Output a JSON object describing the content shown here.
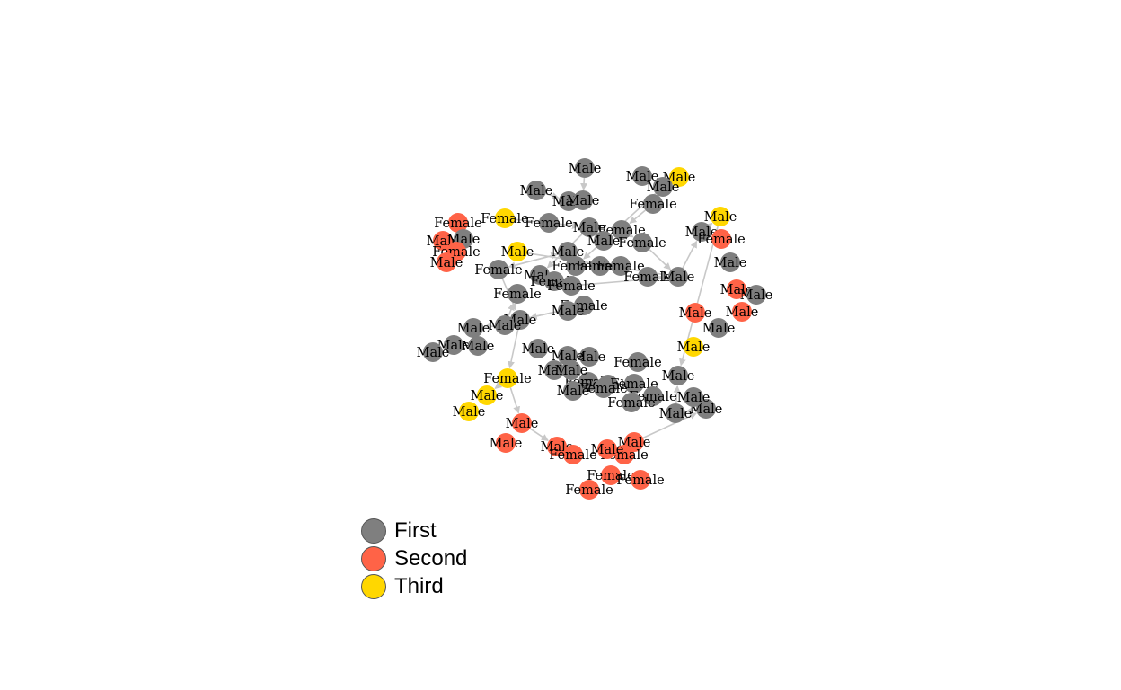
{
  "legend": {
    "items": [
      {
        "label": "First",
        "color": "#7f7f7f"
      },
      {
        "label": "Second",
        "color": "#ff6347"
      },
      {
        "label": "Third",
        "color": "#ffd700"
      }
    ]
  },
  "graph": {
    "colors": {
      "First": "#7f7f7f",
      "Second": "#ff6347",
      "Third": "#ffd700",
      "edge": "#c8c8c8"
    },
    "nodes": [
      {
        "id": "n1",
        "label": "Male",
        "cls": "First"
      },
      {
        "id": "n2",
        "label": "Male",
        "cls": "First"
      },
      {
        "id": "n3",
        "label": "Male",
        "cls": "Third"
      },
      {
        "id": "n4",
        "label": "Male",
        "cls": "First"
      },
      {
        "id": "n5",
        "label": "Male",
        "cls": "First"
      },
      {
        "id": "n6",
        "label": "Male",
        "cls": "First"
      },
      {
        "id": "n7",
        "label": "Male",
        "cls": "First"
      },
      {
        "id": "n8",
        "label": "Female",
        "cls": "First"
      },
      {
        "id": "n9",
        "label": "Female",
        "cls": "Third"
      },
      {
        "id": "n10",
        "label": "Female",
        "cls": "First"
      },
      {
        "id": "n11",
        "label": "Male",
        "cls": "First"
      },
      {
        "id": "n12",
        "label": "Female",
        "cls": "First"
      },
      {
        "id": "n13",
        "label": "Female",
        "cls": "First"
      },
      {
        "id": "n14",
        "label": "Male",
        "cls": "First"
      },
      {
        "id": "n15",
        "label": "Female",
        "cls": "Second"
      },
      {
        "id": "n16",
        "label": "Male",
        "cls": "Second"
      },
      {
        "id": "n17",
        "label": "Male",
        "cls": "First"
      },
      {
        "id": "n18",
        "label": "Female",
        "cls": "Second"
      },
      {
        "id": "n19",
        "label": "Male",
        "cls": "Second"
      },
      {
        "id": "n20",
        "label": "Male",
        "cls": "Third"
      },
      {
        "id": "n21",
        "label": "Male",
        "cls": "First"
      },
      {
        "id": "n22",
        "label": "Female",
        "cls": "First"
      },
      {
        "id": "n23",
        "label": "Male",
        "cls": "First"
      },
      {
        "id": "n24",
        "label": "Female",
        "cls": "First"
      },
      {
        "id": "n25",
        "label": "Female",
        "cls": "First"
      },
      {
        "id": "n26",
        "label": "Female",
        "cls": "First"
      },
      {
        "id": "n27",
        "label": "Female",
        "cls": "First"
      },
      {
        "id": "n28",
        "label": "Female",
        "cls": "First"
      },
      {
        "id": "n29",
        "label": "Female",
        "cls": "First"
      },
      {
        "id": "n30",
        "label": "Male",
        "cls": "First"
      },
      {
        "id": "n31",
        "label": "Male",
        "cls": "Third"
      },
      {
        "id": "n32",
        "label": "Male",
        "cls": "First"
      },
      {
        "id": "n33",
        "label": "Female",
        "cls": "Second"
      },
      {
        "id": "n34",
        "label": "Male",
        "cls": "First"
      },
      {
        "id": "n35",
        "label": "Male",
        "cls": "Second"
      },
      {
        "id": "n36",
        "label": "Female",
        "cls": "First"
      },
      {
        "id": "n37",
        "label": "Male",
        "cls": "Second"
      },
      {
        "id": "n38",
        "label": "Male",
        "cls": "First"
      },
      {
        "id": "n39",
        "label": "Female",
        "cls": "First"
      },
      {
        "id": "n40",
        "label": "Male",
        "cls": "First"
      },
      {
        "id": "n41",
        "label": "Male",
        "cls": "First"
      },
      {
        "id": "n42",
        "label": "Male",
        "cls": "First"
      },
      {
        "id": "n43",
        "label": "Male",
        "cls": "First"
      },
      {
        "id": "n44",
        "label": "Male",
        "cls": "Second"
      },
      {
        "id": "n45",
        "label": "Male",
        "cls": "First"
      },
      {
        "id": "n46",
        "label": "Male",
        "cls": "First"
      },
      {
        "id": "n47",
        "label": "Male",
        "cls": "Third"
      },
      {
        "id": "n48",
        "label": "Male",
        "cls": "First"
      },
      {
        "id": "n49",
        "label": "Male",
        "cls": "First"
      },
      {
        "id": "n50",
        "label": "Male",
        "cls": "First"
      },
      {
        "id": "n51",
        "label": "Male",
        "cls": "First"
      },
      {
        "id": "n52",
        "label": "Male",
        "cls": "First"
      },
      {
        "id": "n53",
        "label": "Female",
        "cls": "First"
      },
      {
        "id": "n54",
        "label": "Female",
        "cls": "First"
      },
      {
        "id": "n55",
        "label": "Female",
        "cls": "First"
      },
      {
        "id": "n56",
        "label": "Male",
        "cls": "First"
      },
      {
        "id": "n57",
        "label": "Male",
        "cls": "First"
      },
      {
        "id": "n58",
        "label": "Female",
        "cls": "Third"
      },
      {
        "id": "n59",
        "label": "Male",
        "cls": "Third"
      },
      {
        "id": "n60",
        "label": "Male",
        "cls": "Third"
      },
      {
        "id": "n61",
        "label": "Male",
        "cls": "First"
      },
      {
        "id": "n62",
        "label": "Female",
        "cls": "First"
      },
      {
        "id": "n63",
        "label": "Female",
        "cls": "First"
      },
      {
        "id": "n64",
        "label": "Female",
        "cls": "First"
      },
      {
        "id": "n65",
        "label": "Female",
        "cls": "First"
      },
      {
        "id": "n66",
        "label": "Male",
        "cls": "First"
      },
      {
        "id": "n67",
        "label": "Male",
        "cls": "First"
      },
      {
        "id": "n68",
        "label": "Male",
        "cls": "First"
      },
      {
        "id": "n69",
        "label": "Male",
        "cls": "First"
      },
      {
        "id": "n70",
        "label": "Male",
        "cls": "Second"
      },
      {
        "id": "n71",
        "label": "Male",
        "cls": "Second"
      },
      {
        "id": "n72",
        "label": "Male",
        "cls": "Second"
      },
      {
        "id": "n73",
        "label": "Female",
        "cls": "Second"
      },
      {
        "id": "n74",
        "label": "Male",
        "cls": "Second"
      },
      {
        "id": "n75",
        "label": "Female",
        "cls": "Second"
      },
      {
        "id": "n76",
        "label": "Male",
        "cls": "Second"
      },
      {
        "id": "n77",
        "label": "Female",
        "cls": "Second"
      },
      {
        "id": "n78",
        "label": "Female",
        "cls": "Second"
      },
      {
        "id": "n79",
        "label": "Female",
        "cls": "Second"
      }
    ],
    "edges": [
      [
        "n1",
        "n6"
      ],
      [
        "n4",
        "n5"
      ],
      [
        "n8",
        "n12"
      ],
      [
        "n9",
        "n11"
      ],
      [
        "n10",
        "n11"
      ],
      [
        "n11",
        "n23"
      ],
      [
        "n12",
        "n13"
      ],
      [
        "n13",
        "n30"
      ],
      [
        "n20",
        "n30"
      ],
      [
        "n21",
        "n22"
      ],
      [
        "n22",
        "n21"
      ],
      [
        "n23",
        "n25"
      ],
      [
        "n24",
        "n29"
      ],
      [
        "n28",
        "n30"
      ],
      [
        "n29",
        "n30"
      ],
      [
        "n30",
        "n32"
      ],
      [
        "n32",
        "n31"
      ],
      [
        "n31",
        "n50"
      ],
      [
        "n39",
        "n38"
      ],
      [
        "n38",
        "n39"
      ],
      [
        "n22",
        "n38"
      ],
      [
        "n38",
        "n58"
      ],
      [
        "n58",
        "n59"
      ],
      [
        "n58",
        "n70"
      ],
      [
        "n70",
        "n72"
      ],
      [
        "n72",
        "n73"
      ],
      [
        "n74",
        "n57"
      ],
      [
        "n57",
        "n51"
      ],
      [
        "n51",
        "n50"
      ],
      [
        "n40",
        "n36"
      ],
      [
        "n40",
        "n41"
      ],
      [
        "n39",
        "n42"
      ],
      [
        "n14",
        "n24"
      ],
      [
        "n7",
        "n14"
      ],
      [
        "n17",
        "n19"
      ],
      [
        "n26",
        "n27"
      ]
    ]
  }
}
